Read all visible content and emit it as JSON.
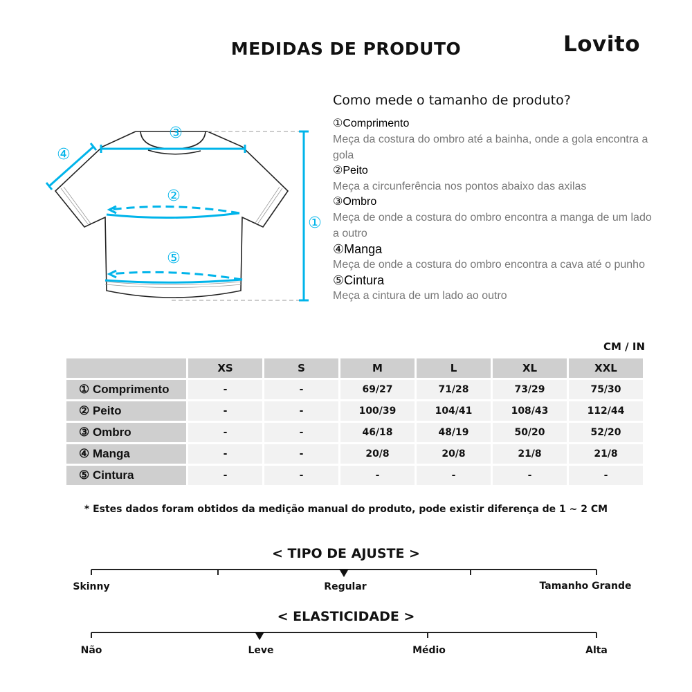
{
  "header": {
    "title": "MEDIDAS DE PRODUTO",
    "logo": "Lovito"
  },
  "guide": {
    "question": "Como mede o tamanho de produto?",
    "items": [
      {
        "label": "①Comprimento",
        "text": "Meça da costura do ombro até a bainha, onde a gola encontra a gola"
      },
      {
        "label": "②Peito",
        "text": "Meça a circunferência nos pontos abaixo das axilas"
      },
      {
        "label": "③Ombro",
        "text": "Meça de onde a costura do ombro encontra a manga de um lado a outro"
      },
      {
        "label": "④Manga",
        "text": "Meça de onde a costura do ombro encontra a cava até o punho"
      },
      {
        "label": "⑤Cintura",
        "text": "Meça a cintura de um lado ao outro"
      }
    ],
    "diagram_labels": [
      "①",
      "②",
      "③",
      "④",
      "⑤"
    ],
    "accent_color": "#00b4ea"
  },
  "table": {
    "unit": "CM / IN",
    "sizes": [
      "XS",
      "S",
      "M",
      "L",
      "XL",
      "XXL"
    ],
    "rows": [
      {
        "label": "① Comprimento",
        "values": [
          "-",
          "-",
          "69/27",
          "71/28",
          "73/29",
          "75/30"
        ]
      },
      {
        "label": "② Peito",
        "values": [
          "-",
          "-",
          "100/39",
          "104/41",
          "108/43",
          "112/44"
        ]
      },
      {
        "label": "③ Ombro",
        "values": [
          "-",
          "-",
          "46/18",
          "48/19",
          "50/20",
          "52/20"
        ]
      },
      {
        "label": "④ Manga",
        "values": [
          "-",
          "-",
          "20/8",
          "20/8",
          "21/8",
          "21/8"
        ]
      },
      {
        "label": "⑤ Cintura",
        "values": [
          "-",
          "-",
          "-",
          "-",
          "-",
          "-"
        ]
      }
    ]
  },
  "note": "* Estes dados foram obtidos da medição manual do produto, pode existir diferença de 1 ~ 2 CM",
  "fit": {
    "title": "< TIPO DE AJUSTE >",
    "labels": [
      "Skinny",
      "Regular",
      "Tamanho Grande"
    ],
    "selected": "Regular",
    "marker_fraction": 0.5
  },
  "elasticity": {
    "title": "< ELASTICIDADE >",
    "labels": [
      "Não",
      "Leve",
      "Médio",
      "Alta"
    ],
    "selected": "Leve",
    "marker_fraction": 0.333
  }
}
